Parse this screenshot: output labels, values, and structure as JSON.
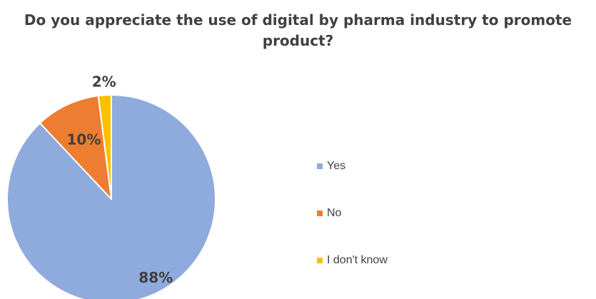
{
  "chart_data": {
    "type": "pie",
    "title": "Do you appreciate the use of digital by pharma industry to promote product?",
    "categories": [
      "Yes",
      "No",
      "I don't know"
    ],
    "values": [
      88,
      10,
      2
    ],
    "labels": [
      "88%",
      "10%",
      "2%"
    ],
    "colors": [
      "#8faadc",
      "#ed7d31",
      "#ffc000"
    ],
    "legend_position": "right"
  }
}
